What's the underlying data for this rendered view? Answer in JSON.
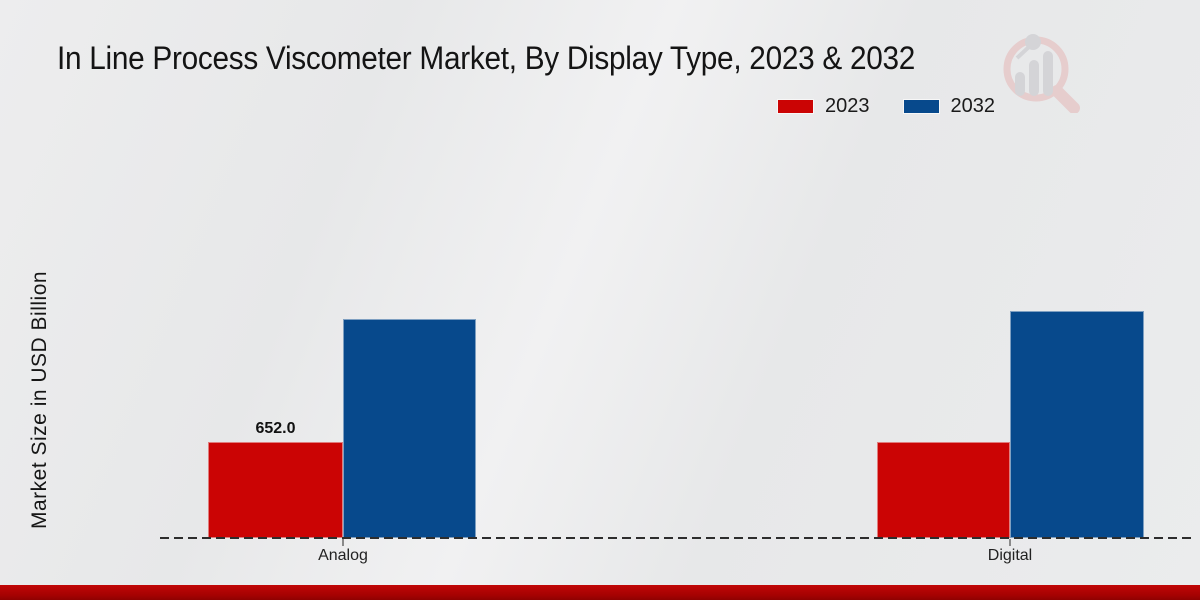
{
  "chart_data": {
    "type": "bar",
    "title": "In Line Process Viscometer Market, By Display Type, 2023 & 2032",
    "ylabel": "Market Size in USD Billion",
    "categories": [
      "Analog",
      "Digital"
    ],
    "series": [
      {
        "name": "2023",
        "color": "#cb0404",
        "values": [
          652.0,
          652.0
        ]
      },
      {
        "name": "2032",
        "color": "#07498c",
        "values": [
          1490,
          1540
        ]
      }
    ],
    "value_label": {
      "text": "652.0",
      "series": "2023",
      "category": "Analog"
    },
    "legend_position": "top-right",
    "grid": false,
    "baseline_style": "dashed",
    "ylim": [
      0,
      1600
    ],
    "units": "USD Billion",
    "note": "2032 values estimated from bar heights; only the Analog 2023 bar carries a printed data label"
  },
  "branding": {
    "watermark": "magnifier-bar-chart-logo",
    "watermark_ring_color": "#e6caca",
    "watermark_bar_color": "#d2d2d5",
    "accent_strip_color": "#a40202"
  },
  "background_color": "#eaebec"
}
